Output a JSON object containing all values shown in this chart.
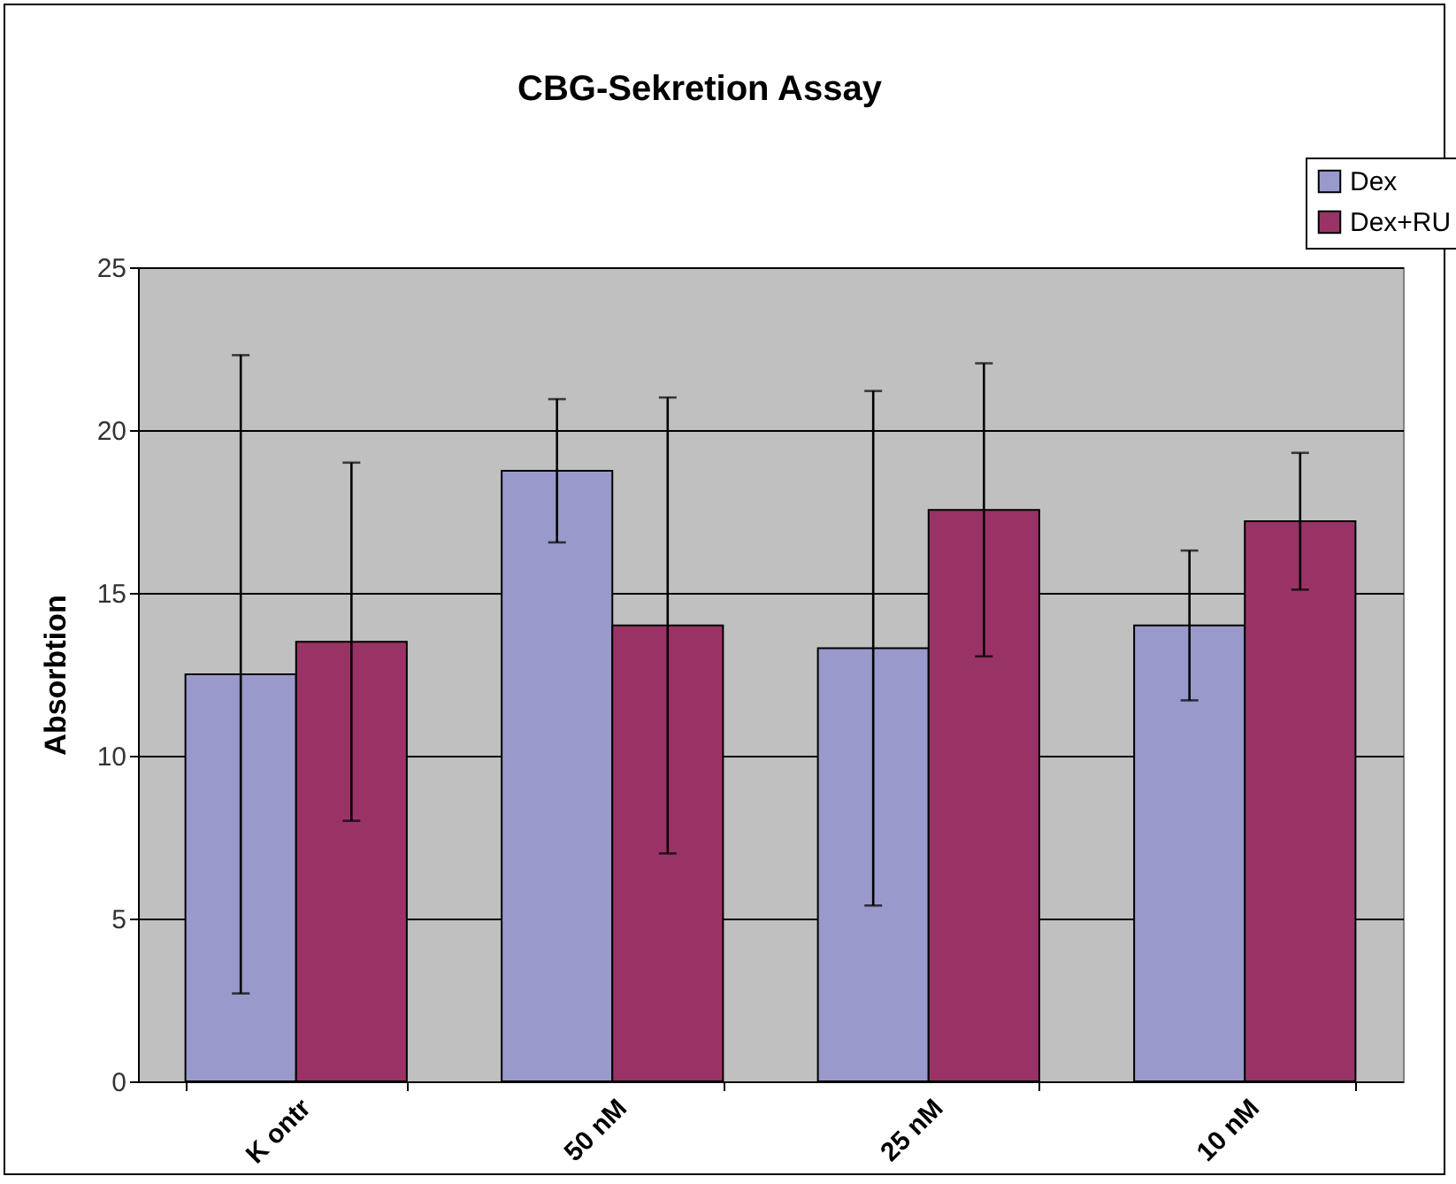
{
  "chart_data": {
    "type": "bar",
    "title": "CBG-Sekretion Assay",
    "ylabel": "Absorbtion",
    "categories": [
      "K ontr",
      "50 nM",
      "25 nM",
      "10 nM"
    ],
    "series": [
      {
        "name": "Dex",
        "color": "#9999cc",
        "values": [
          12.5,
          18.75,
          13.3,
          14.0
        ],
        "errors": [
          9.8,
          2.2,
          7.9,
          2.3
        ]
      },
      {
        "name": "Dex+RU",
        "color": "#993366",
        "values": [
          13.5,
          14.0,
          17.55,
          17.2
        ],
        "errors": [
          5.5,
          7.0,
          4.5,
          2.1
        ]
      }
    ],
    "ylim": [
      0,
      25
    ],
    "yticks": [
      0,
      5,
      10,
      15,
      20,
      25
    ],
    "grid": "y",
    "legend": "top right"
  }
}
